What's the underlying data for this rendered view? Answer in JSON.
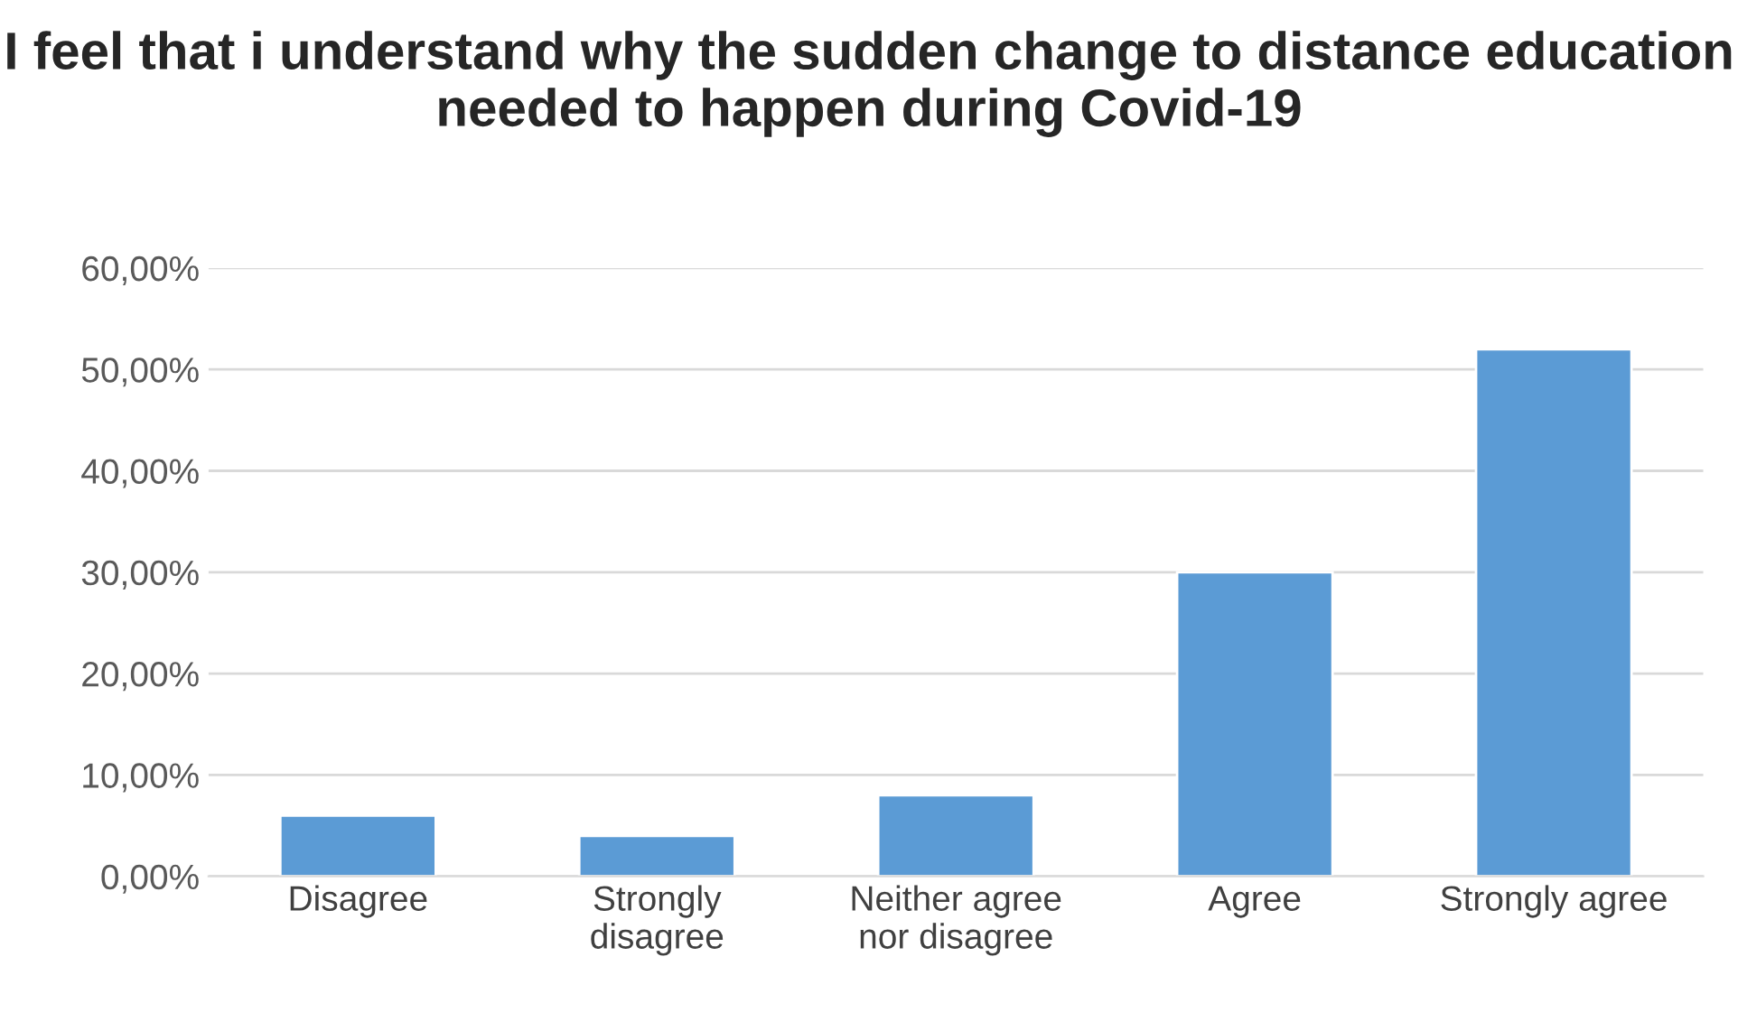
{
  "chart_data": {
    "type": "bar",
    "title": "I feel that i understand why the sudden change to distance education needed to happen during Covid-19",
    "categories": [
      "Disagree",
      "Strongly\ndisagree",
      "Neither agree\nnor disagree",
      "Agree",
      "Strongly agree"
    ],
    "values": [
      6,
      4,
      8,
      30,
      52
    ],
    "color": "#5b9bd5",
    "ylim": [
      0,
      60
    ],
    "yticks": [
      {
        "value": 0,
        "label": "0,00%"
      },
      {
        "value": 10,
        "label": "10,00%"
      },
      {
        "value": 20,
        "label": "20,00%"
      },
      {
        "value": 30,
        "label": "30,00%"
      },
      {
        "value": 40,
        "label": "40,00%"
      },
      {
        "value": 50,
        "label": "50,00%"
      },
      {
        "value": 60,
        "label": "60,00%"
      }
    ],
    "grid": "y"
  }
}
